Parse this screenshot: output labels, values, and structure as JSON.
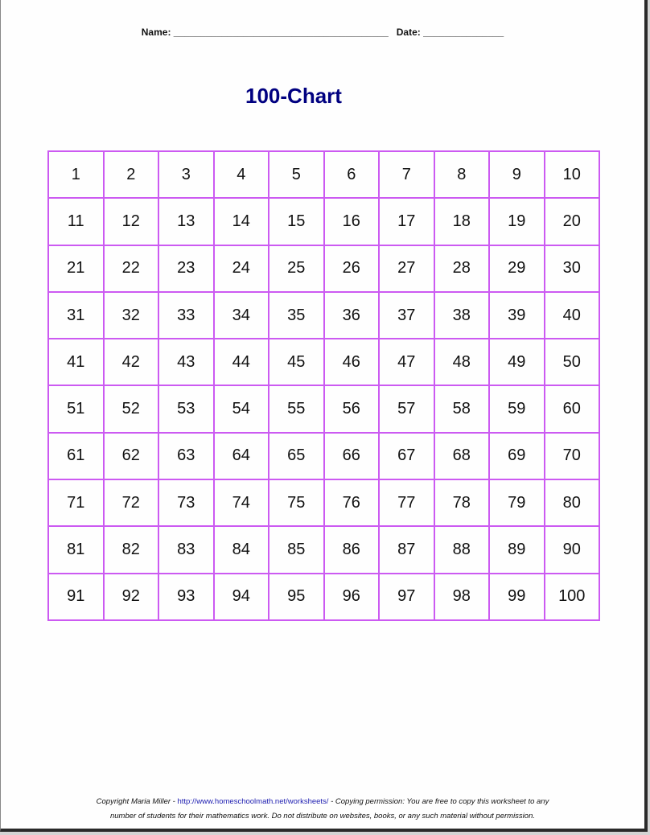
{
  "header": {
    "name_label": "Name:",
    "name_line": "________________________________________",
    "date_label": "Date:",
    "date_line": "_______________"
  },
  "title": "100-Chart",
  "grid": {
    "border_color": "#cc5af2",
    "rows": [
      [
        "1",
        "2",
        "3",
        "4",
        "5",
        "6",
        "7",
        "8",
        "9",
        "10"
      ],
      [
        "11",
        "12",
        "13",
        "14",
        "15",
        "16",
        "17",
        "18",
        "19",
        "20"
      ],
      [
        "21",
        "22",
        "23",
        "24",
        "25",
        "26",
        "27",
        "28",
        "29",
        "30"
      ],
      [
        "31",
        "32",
        "33",
        "34",
        "35",
        "36",
        "37",
        "38",
        "39",
        "40"
      ],
      [
        "41",
        "42",
        "43",
        "44",
        "45",
        "46",
        "47",
        "48",
        "49",
        "50"
      ],
      [
        "51",
        "52",
        "53",
        "54",
        "55",
        "56",
        "57",
        "58",
        "59",
        "60"
      ],
      [
        "61",
        "62",
        "63",
        "64",
        "65",
        "66",
        "67",
        "68",
        "69",
        "70"
      ],
      [
        "71",
        "72",
        "73",
        "74",
        "75",
        "76",
        "77",
        "78",
        "79",
        "80"
      ],
      [
        "81",
        "82",
        "83",
        "84",
        "85",
        "86",
        "87",
        "88",
        "89",
        "90"
      ],
      [
        "91",
        "92",
        "93",
        "94",
        "95",
        "96",
        "97",
        "98",
        "99",
        "100"
      ]
    ]
  },
  "footer": {
    "copyright": "Copyright Maria Miller - ",
    "link": "http://www.homeschoolmath.net/worksheets/",
    "permission_1": " - Copying permission: You are free to copy this worksheet to any",
    "permission_2": "number of students for their mathematics work. Do not distribute on websites, books, or any such material without permission."
  }
}
